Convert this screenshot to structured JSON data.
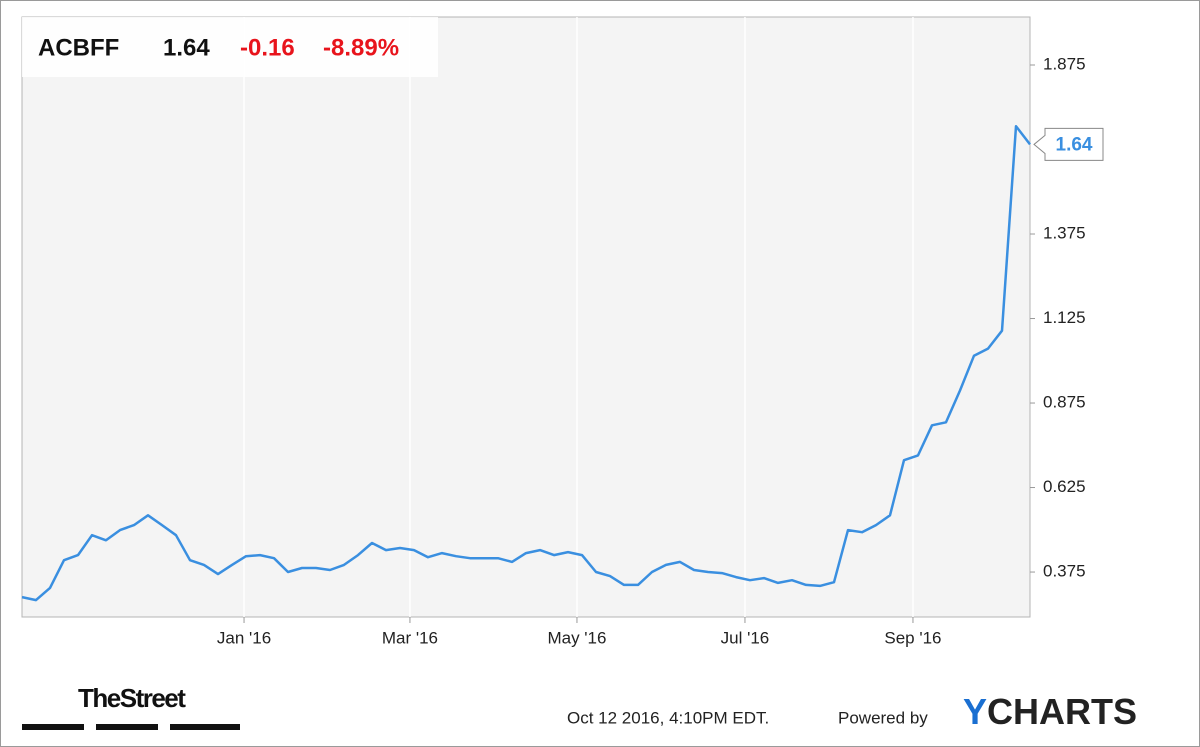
{
  "chart_data": {
    "type": "line",
    "header": {
      "symbol": "ACBFF",
      "price": 1.64,
      "change": -0.16,
      "change_pct": "-8.89%"
    },
    "series": [
      {
        "name": "ACBFF",
        "color": "#3a8fe0",
        "values": [
          0.301,
          0.292,
          0.328,
          0.41,
          0.425,
          0.484,
          0.469,
          0.499,
          0.514,
          0.543,
          0.514,
          0.484,
          0.41,
          0.396,
          0.369,
          0.396,
          0.422,
          0.425,
          0.416,
          0.375,
          0.387,
          0.387,
          0.381,
          0.396,
          0.425,
          0.461,
          0.44,
          0.446,
          0.44,
          0.419,
          0.431,
          0.422,
          0.416,
          0.416,
          0.416,
          0.405,
          0.431,
          0.44,
          0.425,
          0.434,
          0.425,
          0.375,
          0.363,
          0.337,
          0.337,
          0.375,
          0.396,
          0.405,
          0.381,
          0.375,
          0.372,
          0.36,
          0.351,
          0.357,
          0.343,
          0.351,
          0.337,
          0.334,
          0.345,
          0.499,
          0.493,
          0.514,
          0.543,
          0.706,
          0.72,
          0.809,
          0.818,
          0.912,
          1.015,
          1.036,
          1.089,
          1.694,
          1.64
        ]
      }
    ],
    "xlim": [
      0,
      72
    ],
    "xticks": [
      {
        "value": 15.86,
        "label": "Jan '16"
      },
      {
        "value": 27.71,
        "label": "Mar '16"
      },
      {
        "value": 39.64,
        "label": "May '16"
      },
      {
        "value": 51.64,
        "label": "Jul '16"
      },
      {
        "value": 63.64,
        "label": "Sep '16"
      }
    ],
    "ylim": [
      0.242,
      2.017
    ],
    "yticks": [
      0.375,
      0.625,
      0.875,
      1.125,
      1.375,
      1.875
    ],
    "grid": "x",
    "footer": {
      "source": "TheStreet",
      "timestamp": "Oct 12 2016, 4:10PM EDT.",
      "powered": "Powered by",
      "brand": [
        "Y",
        "CHARTS"
      ]
    }
  }
}
